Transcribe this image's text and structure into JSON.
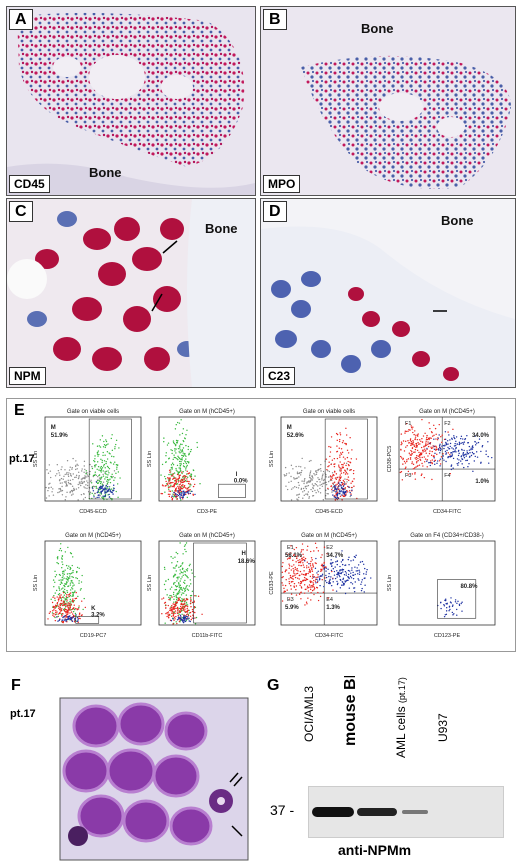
{
  "panels": {
    "A": {
      "letter": "A",
      "stain": "CD45",
      "bone": "Bone"
    },
    "B": {
      "letter": "B",
      "stain": "MPO",
      "bone": "Bone"
    },
    "C": {
      "letter": "C",
      "stain": "NPM",
      "bone": "Bone"
    },
    "D": {
      "letter": "D",
      "stain": "C23",
      "bone": "Bone"
    }
  },
  "flow": {
    "letter": "E",
    "patient": "pt.17",
    "ylabel_ss": "SS Lin",
    "plots": [
      {
        "title": "Gate on viable cells",
        "xlabel": "CD45-ECD",
        "ylabel": "SS Lin",
        "gate": "M",
        "pct": "51.9%"
      },
      {
        "title": "Gate on M (hCD45+)",
        "xlabel": "CD3-PE",
        "ylabel": "SS Lin",
        "gate": "I",
        "pct": "0.0%"
      },
      {
        "title": "Gate on viable cells",
        "xlabel": "CD45-ECD",
        "ylabel": "SS Lin",
        "gate": "M",
        "pct": "52.6%"
      },
      {
        "title": "Gate on M (hCD45+)",
        "xlabel": "CD34-FITC",
        "ylabel": "CD38-PC5",
        "q1": "F1",
        "q2": "F2",
        "q3": "F3",
        "q4": "F4",
        "pct": "34.0%",
        "pct2": "1.0%"
      },
      {
        "title": "Gate on M (hCD45+)",
        "xlabel": "CD19-PC7",
        "ylabel": "SS Lin",
        "gate": "K",
        "pct": "3.2%"
      },
      {
        "title": "Gate on M (hCD45+)",
        "xlabel": "CD11b-FITC",
        "ylabel": "SS Lin",
        "gate": "H",
        "pct": "18.6%"
      },
      {
        "title": "Gate on M (hCD45+)",
        "xlabel": "CD34-FITC",
        "ylabel": "CD33-PE",
        "q1": "E1",
        "q2": "E2",
        "q3": "E3",
        "q4": "E4",
        "p1": "58.1%",
        "p2": "34.7%",
        "p3": "5.9%",
        "p4": "1.3%"
      },
      {
        "title": "Gate on F4 (CD34+/CD38-)",
        "xlabel": "CD123-PE",
        "ylabel": "SS Lin",
        "pct": "80.8%"
      }
    ]
  },
  "panelF": {
    "letter": "F",
    "patient": "pt.17"
  },
  "panelG": {
    "letter": "G",
    "lanes": [
      "OCI/AML3",
      "mouse BM",
      "AML cells",
      "U937"
    ],
    "lane3_sub": "(pt.17)",
    "marker": "37 -",
    "antibody": "anti-NPMm"
  },
  "colors": {
    "magenta": "#c2185b",
    "hematoxylin": "#4a5fa8",
    "flow_red": "#e8231d",
    "flow_green": "#36b83c",
    "flow_blue": "#1b2fa0",
    "flow_gray": "#8c8c8c"
  }
}
